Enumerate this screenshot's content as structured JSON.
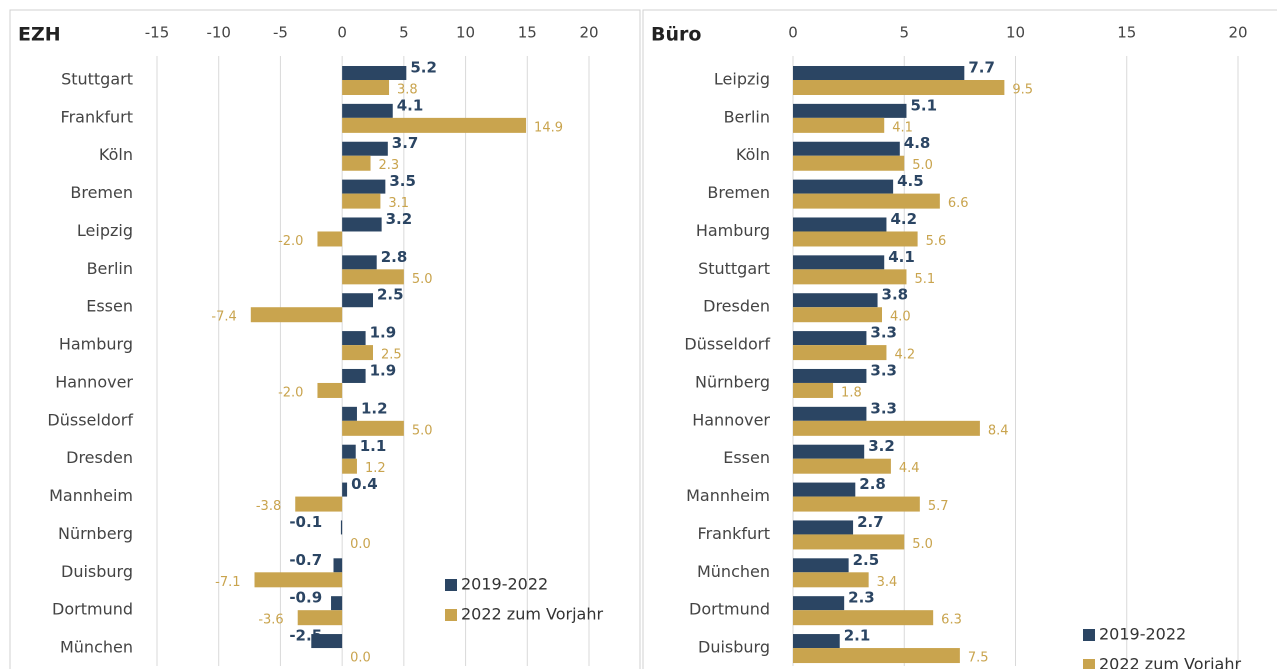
{
  "chart_data": [
    {
      "type": "bar",
      "title": "EZH",
      "categories": [
        "Stuttgart",
        "Frankfurt",
        "Köln",
        "Bremen",
        "Leipzig",
        "Berlin",
        "Essen",
        "Hamburg",
        "Hannover",
        "Düsseldorf",
        "Dresden",
        "Mannheim",
        "Nürnberg",
        "Duisburg",
        "Dortmund",
        "München"
      ],
      "series": [
        {
          "name": "2019-2022",
          "color": "#2b4563",
          "values": [
            5.2,
            4.1,
            3.7,
            3.5,
            3.2,
            2.8,
            2.5,
            1.9,
            1.9,
            1.2,
            1.1,
            0.4,
            -0.1,
            -0.7,
            -0.9,
            -2.5
          ],
          "value_labels": [
            "5.2",
            "4.1",
            "3.7",
            "3.5",
            "3.2",
            "2.8",
            "2.5",
            "1.9",
            "1.9",
            "1.2",
            "1.1",
            "0.4",
            "-0.1",
            "-0.7",
            "-0.9",
            "-2.5"
          ]
        },
        {
          "name": "2022 zum Vorjahr",
          "color": "#c9a44e",
          "values": [
            3.8,
            14.9,
            2.3,
            3.1,
            -2.0,
            5.0,
            -7.4,
            2.5,
            -2.0,
            5.0,
            1.2,
            -3.8,
            0.0,
            -7.1,
            -3.6,
            0.0
          ],
          "value_labels": [
            "3.8",
            "14.9",
            "2.3",
            "3.1",
            "-2.0",
            "5.0",
            "-7.4",
            "2.5",
            "-2.0",
            "5.0",
            "1.2",
            "-3.8",
            "0.0",
            "-7.1",
            "-3.6",
            "0.0"
          ]
        }
      ],
      "xlim": [
        -15,
        20
      ],
      "xticks": [
        -15,
        -10,
        -5,
        0,
        5,
        10,
        15,
        20
      ],
      "grid": true,
      "legend": "bottom-right"
    },
    {
      "type": "bar",
      "title": "Büro",
      "categories": [
        "Leipzig",
        "Berlin",
        "Köln",
        "Bremen",
        "Hamburg",
        "Stuttgart",
        "Dresden",
        "Düsseldorf",
        "Nürnberg",
        "Hannover",
        "Essen",
        "Mannheim",
        "Frankfurt",
        "München",
        "Dortmund",
        "Duisburg"
      ],
      "series": [
        {
          "name": "2019-2022",
          "color": "#2b4563",
          "values": [
            7.7,
            5.1,
            4.8,
            4.5,
            4.2,
            4.1,
            3.8,
            3.3,
            3.3,
            3.3,
            3.2,
            2.8,
            2.7,
            2.5,
            2.3,
            2.1
          ],
          "value_labels": [
            "7.7",
            "5.1",
            "4.8",
            "4.5",
            "4.2",
            "4.1",
            "3.8",
            "3.3",
            "3.3",
            "3.3",
            "3.2",
            "2.8",
            "2.7",
            "2.5",
            "2.3",
            "2.1"
          ]
        },
        {
          "name": "2022 zum Vorjahr",
          "color": "#c9a44e",
          "values": [
            9.5,
            4.1,
            5.0,
            6.6,
            5.6,
            5.1,
            4.0,
            4.2,
            1.8,
            8.4,
            4.4,
            5.7,
            5.0,
            3.4,
            6.3,
            7.5
          ],
          "value_labels": [
            "9.5",
            "4.1",
            "5.0",
            "6.6",
            "5.6",
            "5.1",
            "4.0",
            "4.2",
            "1.8",
            "8.4",
            "4.4",
            "5.7",
            "5.0",
            "3.4",
            "6.3",
            "7.5"
          ]
        }
      ],
      "xlim": [
        0,
        20
      ],
      "xticks": [
        0,
        5,
        10,
        15,
        20
      ],
      "grid": true,
      "legend": "bottom-right"
    }
  ]
}
